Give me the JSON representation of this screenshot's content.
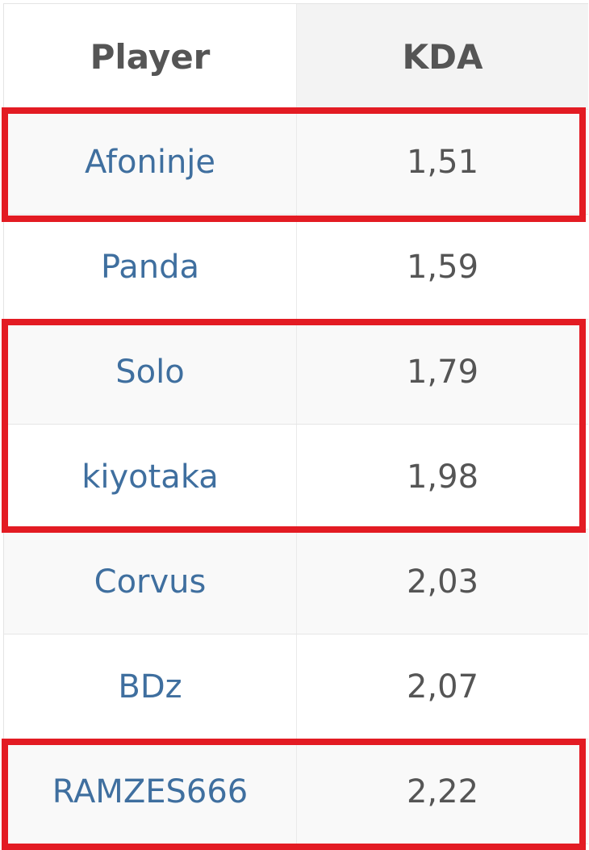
{
  "table": {
    "headers": {
      "player": "Player",
      "kda": "KDA"
    },
    "sorted_column": "KDA",
    "rows": [
      {
        "player": "Afoninje",
        "kda": "1,51",
        "highlighted": true
      },
      {
        "player": "Panda",
        "kda": "1,59",
        "highlighted": false
      },
      {
        "player": "Solo",
        "kda": "1,79",
        "highlighted": true
      },
      {
        "player": "kiyotaka",
        "kda": "1,98",
        "highlighted": true
      },
      {
        "player": "Corvus",
        "kda": "2,03",
        "highlighted": false
      },
      {
        "player": "BDz",
        "kda": "2,07",
        "highlighted": false
      },
      {
        "player": "RAMZES666",
        "kda": "2,22",
        "highlighted": true
      }
    ]
  },
  "colors": {
    "highlight": "#e31b23",
    "link": "#3f6f9f",
    "text": "#555555"
  }
}
